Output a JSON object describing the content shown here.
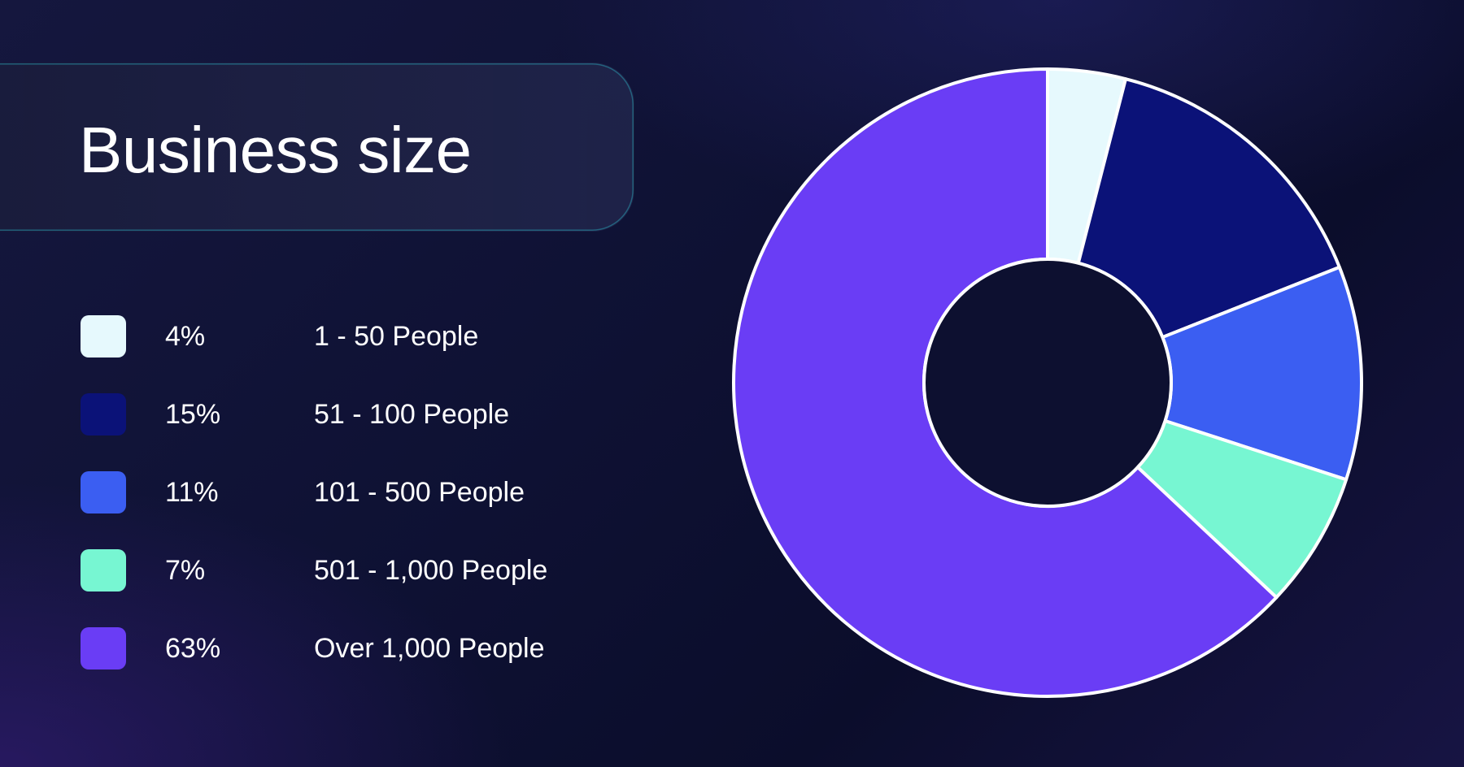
{
  "title": "Business size",
  "colors": {
    "border": "#ffffff",
    "hole": "#0d1030"
  },
  "legend": [
    {
      "percent": "4%",
      "label": "1 - 50 People",
      "color": "#e6f9fd"
    },
    {
      "percent": "15%",
      "label": "51 - 100 People",
      "color": "#0b1278"
    },
    {
      "percent": "11%",
      "label": "101 - 500 People",
      "color": "#3b5ef2"
    },
    {
      "percent": "7%",
      "label": "501 - 1,000 People",
      "color": "#77f6d2"
    },
    {
      "percent": "63%",
      "label": "Over 1,000 People",
      "color": "#6a3df5"
    }
  ],
  "chart_data": {
    "type": "pie",
    "donut": true,
    "title": "Business size",
    "categories": [
      "1 - 50 People",
      "51 - 100 People",
      "101 - 500 People",
      "501 - 1,000 People",
      "Over 1,000 People"
    ],
    "values": [
      4,
      15,
      11,
      7,
      63
    ],
    "colors": [
      "#e6f9fd",
      "#0b1278",
      "#3b5ef2",
      "#77f6d2",
      "#6a3df5"
    ],
    "unit": "%",
    "start_angle": "12 o'clock",
    "direction": "clockwise",
    "legend_position": "left"
  }
}
